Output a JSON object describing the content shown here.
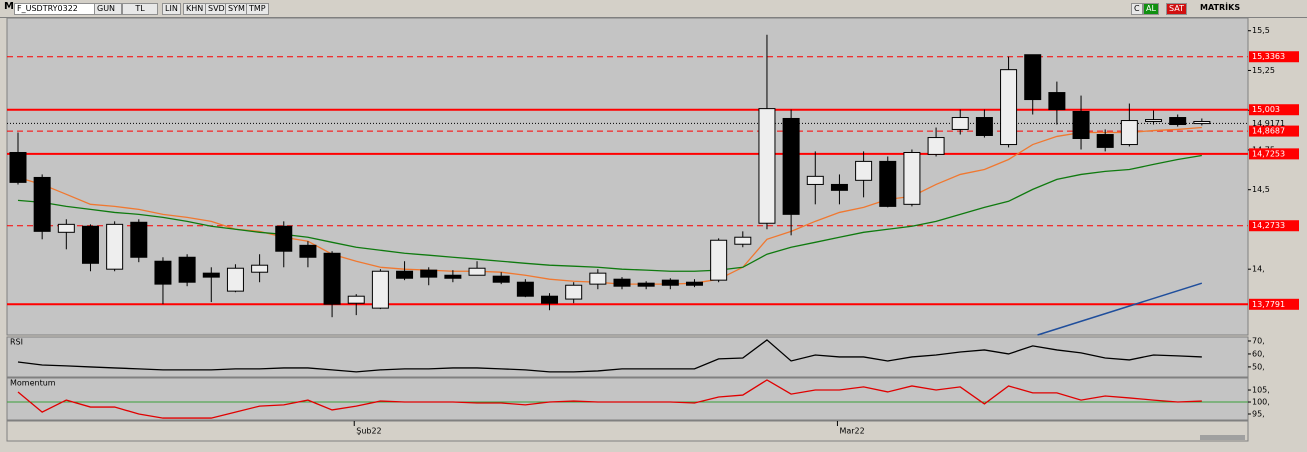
{
  "toolbar": {
    "logo": "M",
    "symbol": "F_USDTRY0322",
    "period": "GUN",
    "currency": "TL",
    "buttons": [
      "LIN",
      "KHN",
      "SVD",
      "SYM",
      "TMP"
    ],
    "right": [
      "C",
      "AL",
      "SAT",
      "MATRİKS"
    ]
  },
  "chart_data": [
    {
      "type": "candlestick",
      "categories": [
        null,
        null,
        null,
        null,
        null,
        null,
        null,
        null,
        null,
        null,
        null,
        null,
        null,
        null,
        "Şub22",
        null,
        null,
        null,
        null,
        null,
        null,
        null,
        null,
        null,
        null,
        null,
        null,
        null,
        null,
        null,
        null,
        null,
        null,
        null,
        "Mar22",
        null,
        null,
        null,
        null,
        null,
        null,
        null,
        null,
        null,
        null,
        null,
        null,
        null,
        null,
        null
      ],
      "open": [
        14.734,
        14.577,
        14.232,
        14.27,
        14.0,
        14.295,
        14.05,
        14.075,
        13.975,
        13.862,
        13.981,
        14.27,
        14.15,
        14.1,
        13.786,
        13.755,
        13.987,
        13.994,
        13.962,
        13.962,
        13.956,
        13.918,
        13.83,
        13.812,
        13.906,
        13.937,
        13.912,
        13.931,
        13.918,
        13.931,
        14.157,
        14.289,
        14.948,
        14.533,
        14.533,
        14.559,
        14.678,
        14.408,
        14.722,
        14.879,
        14.954,
        14.784,
        15.349,
        15.111,
        14.992,
        14.847,
        14.784,
        14.929,
        14.954,
        14.916
      ],
      "high": [
        14.86,
        14.596,
        14.314,
        14.282,
        14.301,
        14.314,
        14.075,
        14.094,
        14.012,
        14.031,
        14.094,
        14.301,
        14.176,
        14.113,
        13.843,
        14.0,
        14.05,
        14.012,
        13.994,
        14.05,
        13.981,
        13.937,
        13.849,
        13.918,
        14.0,
        13.95,
        13.924,
        13.943,
        13.937,
        14.194,
        14.238,
        15.475,
        15.004,
        14.741,
        14.596,
        14.741,
        14.709,
        14.753,
        14.891,
        15.004,
        15.004,
        15.337,
        15.349,
        15.18,
        15.092,
        14.879,
        15.042,
        14.998,
        14.973,
        14.948
      ],
      "low": [
        14.533,
        14.188,
        14.125,
        13.987,
        13.987,
        14.044,
        13.78,
        13.893,
        13.793,
        13.855,
        13.918,
        14.012,
        14.012,
        13.698,
        13.711,
        13.749,
        13.931,
        13.899,
        13.918,
        13.962,
        13.906,
        13.824,
        13.742,
        13.786,
        13.874,
        13.874,
        13.874,
        13.874,
        13.887,
        13.918,
        14.138,
        14.251,
        14.213,
        14.408,
        14.408,
        14.452,
        14.389,
        14.395,
        14.709,
        14.847,
        14.828,
        14.766,
        14.973,
        14.91,
        14.753,
        14.741,
        14.772,
        14.91,
        14.897,
        14.904
      ],
      "close": [
        14.546,
        14.238,
        14.282,
        14.037,
        14.282,
        14.075,
        13.906,
        13.918,
        13.95,
        14.006,
        14.025,
        14.113,
        14.075,
        13.78,
        13.83,
        13.987,
        13.943,
        13.95,
        13.943,
        14.006,
        13.918,
        13.83,
        13.786,
        13.899,
        13.975,
        13.893,
        13.893,
        13.899,
        13.899,
        14.182,
        14.201,
        15.01,
        14.345,
        14.584,
        14.496,
        14.678,
        14.395,
        14.734,
        14.828,
        14.954,
        14.841,
        15.255,
        15.067,
        15.004,
        14.822,
        14.766,
        14.935,
        14.941,
        14.91,
        14.929
      ],
      "up_color": "#eeeeee",
      "down_color": "#000000",
      "series": [
        {
          "color": "#f07830",
          "values": [
            14.577,
            14.533,
            14.471,
            14.408,
            14.395,
            14.376,
            14.345,
            14.326,
            14.301,
            14.251,
            14.238,
            14.201,
            14.176,
            14.094,
            14.05,
            14.012,
            14.0,
            13.994,
            13.987,
            13.987,
            13.981,
            13.962,
            13.937,
            13.924,
            13.918,
            13.906,
            13.906,
            13.906,
            13.912,
            13.937,
            14.012,
            14.188,
            14.238,
            14.301,
            14.357,
            14.389,
            14.439,
            14.458,
            14.533,
            14.596,
            14.627,
            14.69,
            14.784,
            14.835,
            14.86,
            14.86,
            14.86,
            14.872,
            14.879,
            14.891
          ]
        },
        {
          "color": "#0f7a0f",
          "values": [
            14.433,
            14.42,
            14.395,
            14.376,
            14.357,
            14.345,
            14.326,
            14.301,
            14.27,
            14.251,
            14.232,
            14.219,
            14.201,
            14.169,
            14.138,
            14.119,
            14.1,
            14.088,
            14.075,
            14.063,
            14.05,
            14.037,
            14.025,
            14.019,
            14.012,
            14.0,
            13.994,
            13.987,
            13.987,
            13.994,
            14.012,
            14.094,
            14.138,
            14.169,
            14.201,
            14.232,
            14.251,
            14.27,
            14.301,
            14.345,
            14.389,
            14.427,
            14.502,
            14.565,
            14.596,
            14.615,
            14.627,
            14.659,
            14.69,
            14.715
          ]
        }
      ],
      "levels": [
        {
          "value": 15.3363,
          "label": "15,3363",
          "style": "dashed"
        },
        {
          "value": 15.003,
          "label": "15,003",
          "style": "solid"
        },
        {
          "value": 14.8687,
          "label": "14,8687",
          "style": "dashed"
        },
        {
          "value": 14.7253,
          "label": "14,7253",
          "style": "solid"
        },
        {
          "value": 14.2733,
          "label": "14,2733",
          "style": "dashed"
        },
        {
          "value": 13.7791,
          "label": "13,7791",
          "style": "solid"
        }
      ],
      "level_color": "#ff0000",
      "current": {
        "value": 14.9171,
        "label": "14,9171"
      },
      "trendline": {
        "x": [
          42.2,
          49
        ],
        "y": [
          13.586,
          13.912
        ],
        "color": "#1f4e9c"
      },
      "ylim": [
        13.586,
        15.58
      ],
      "yticks": [
        {
          "value": 15.5,
          "label": "15,5"
        },
        {
          "value": 15.25,
          "label": "15,25"
        },
        {
          "value": 15,
          "label": "15,"
        },
        {
          "value": 14.75,
          "label": "14,75"
        },
        {
          "value": 14.5,
          "label": "14,5"
        },
        {
          "value": 14,
          "label": "14,"
        }
      ]
    },
    {
      "type": "line",
      "title": "RSI",
      "series": [
        {
          "color": "#000000",
          "values": [
            53.8,
            51.5,
            50.8,
            50,
            49.2,
            48.5,
            47.7,
            47.7,
            47.7,
            48.5,
            48.5,
            49.2,
            49.2,
            47.7,
            46.2,
            47.7,
            48.5,
            48.5,
            49.2,
            49.2,
            48.5,
            47.7,
            46.2,
            46.2,
            46.9,
            48.5,
            48.5,
            48.5,
            48.5,
            56.2,
            56.9,
            70.8,
            54.6,
            59.2,
            57.7,
            57.7,
            54.6,
            57.7,
            59.2,
            61.5,
            63.1,
            60,
            66.2,
            63.1,
            60.8,
            56.9,
            55.4,
            59.2,
            58.5,
            57.7
          ]
        }
      ],
      "ylim": [
        43,
        72.3
      ],
      "yticks": [
        {
          "value": 70,
          "label": "70,"
        },
        {
          "value": 60,
          "label": "60,"
        },
        {
          "value": 50,
          "label": "50,"
        }
      ]
    },
    {
      "type": "line",
      "title": "Momentum",
      "series": [
        {
          "color": "#e00000",
          "values": [
            104.2,
            95.8,
            100.8,
            97.9,
            97.9,
            95,
            93.3,
            93.3,
            93.3,
            95.8,
            98.3,
            98.8,
            100.8,
            96.7,
            98.3,
            100.4,
            100,
            100,
            100,
            99.6,
            99.6,
            98.8,
            100,
            100.4,
            100,
            100,
            100,
            100,
            99.6,
            102.1,
            102.9,
            109.2,
            103.3,
            105,
            105,
            106.3,
            104.2,
            106.7,
            105,
            106.3,
            99.2,
            106.7,
            103.8,
            103.8,
            100.8,
            102.5,
            101.7,
            100.8,
            100,
            100.4
          ]
        }
      ],
      "reference": {
        "value": 100,
        "color": "#3aa03a"
      },
      "ylim": [
        92.5,
        109.6
      ],
      "yticks": [
        {
          "value": 105,
          "label": "105,"
        },
        {
          "value": 100,
          "label": "100,"
        },
        {
          "value": 95,
          "label": "95,"
        }
      ]
    }
  ]
}
